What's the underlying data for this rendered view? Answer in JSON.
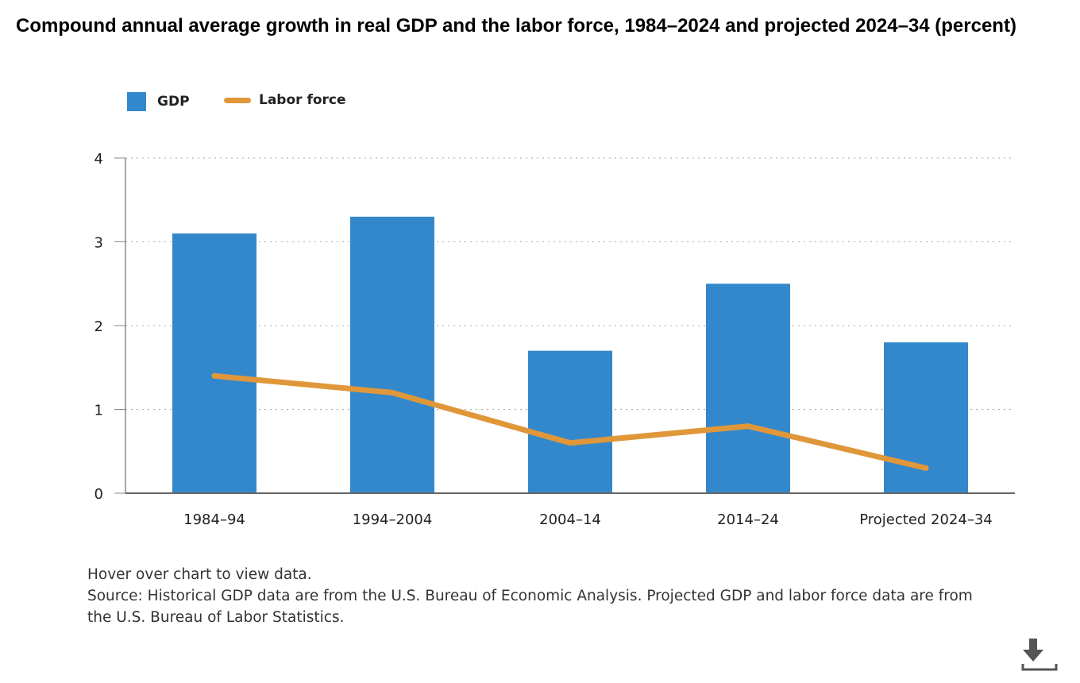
{
  "chart_data": {
    "type": "bar",
    "title": "Compound annual average growth in real GDP and the labor force, 1984–2024 and projected 2024–34 (percent)",
    "categories": [
      "1984–94",
      "1994–2004",
      "2004–14",
      "2014–24",
      "Projected 2024–34"
    ],
    "series": [
      {
        "name": "GDP",
        "type": "bar",
        "color": "#3388cc",
        "values": [
          3.1,
          3.3,
          1.7,
          2.5,
          1.8
        ]
      },
      {
        "name": "Labor force",
        "type": "line",
        "color": "#e0973a",
        "values": [
          1.4,
          1.2,
          0.6,
          0.8,
          0.3
        ]
      }
    ],
    "ylim": [
      0,
      4
    ],
    "yticks": [
      "0",
      "1",
      "2",
      "3",
      "4"
    ],
    "grid": true,
    "legend": "top-left"
  },
  "notes": {
    "hover": "Hover over chart to view data.",
    "source": "Source: Historical GDP data are from the U.S. Bureau of Economic Analysis. Projected GDP and labor force data are from the U.S. Bureau of Labor Statistics."
  }
}
